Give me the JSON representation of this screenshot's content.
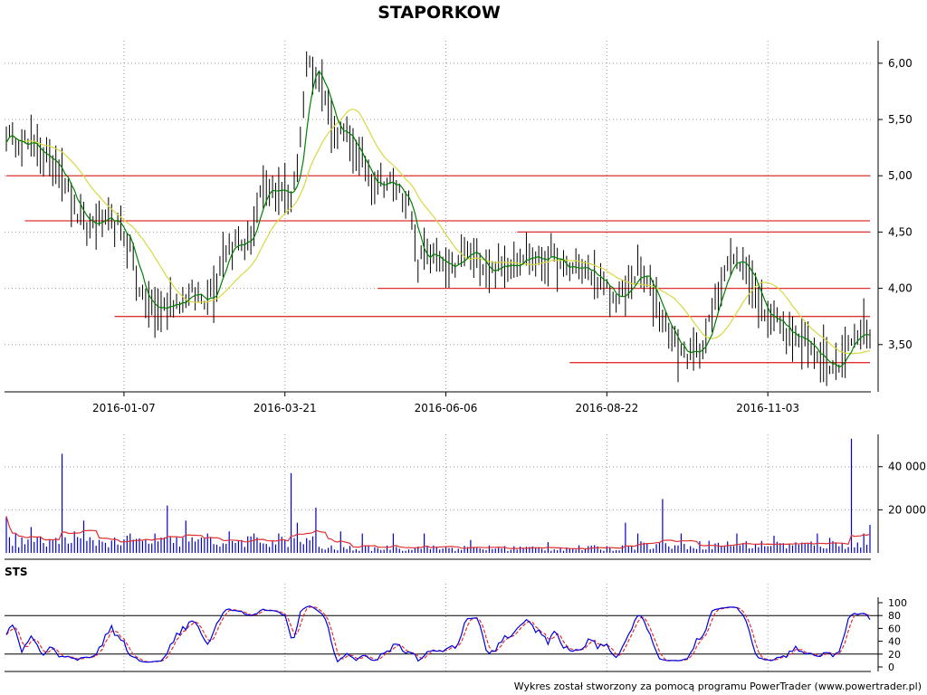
{
  "title": "STAPORKOW",
  "footer": "Wykres został stworzony za pomocą programu PowerTrader (www.powertrader.pl)",
  "colors": {
    "price_bars": "#000000",
    "ma_short": "#008000",
    "ma_long": "#d8d840",
    "support_resistance": "#e03030",
    "volume_bars": "#0000c8",
    "volume_ma": "#e03030",
    "sts_k": "#0000e0",
    "sts_d": "#e03030"
  },
  "chart_data": [
    {
      "type": "ohlc",
      "panel": "price",
      "x_ticks": [
        "2016-01-07",
        "2016-03-21",
        "2016-06-06",
        "2016-08-22",
        "2016-11-03"
      ],
      "x_tick_indices": [
        38,
        90,
        142,
        194,
        246
      ],
      "num_sessions": 280,
      "y_ticks": [
        "6,00",
        "5,50",
        "5,00",
        "4,50",
        "4,00",
        "3,50"
      ],
      "y_tick_values": [
        6.0,
        5.5,
        5.0,
        4.5,
        4.0,
        3.5
      ],
      "ylim": [
        3.08,
        6.2
      ],
      "grid": true,
      "series": [
        {
          "name": "",
          "kind": "moving-average-short"
        },
        {
          "name": "",
          "kind": "moving-average-long"
        }
      ],
      "close_anchors": [
        [
          0,
          5.35
        ],
        [
          6,
          5.3
        ],
        [
          12,
          5.18
        ],
        [
          18,
          5.05
        ],
        [
          22,
          4.7
        ],
        [
          26,
          4.55
        ],
        [
          30,
          4.6
        ],
        [
          36,
          4.55
        ],
        [
          40,
          4.35
        ],
        [
          44,
          3.9
        ],
        [
          48,
          3.8
        ],
        [
          52,
          3.85
        ],
        [
          56,
          3.9
        ],
        [
          60,
          3.95
        ],
        [
          64,
          3.9
        ],
        [
          68,
          4.05
        ],
        [
          70,
          4.35
        ],
        [
          74,
          4.4
        ],
        [
          78,
          4.4
        ],
        [
          82,
          4.8
        ],
        [
          88,
          4.9
        ],
        [
          92,
          4.8
        ],
        [
          95,
          5.3
        ],
        [
          97,
          6.0
        ],
        [
          100,
          5.95
        ],
        [
          103,
          5.7
        ],
        [
          106,
          5.4
        ],
        [
          110,
          5.35
        ],
        [
          114,
          5.15
        ],
        [
          118,
          4.95
        ],
        [
          122,
          4.95
        ],
        [
          126,
          4.9
        ],
        [
          130,
          4.75
        ],
        [
          133,
          4.2
        ],
        [
          136,
          4.35
        ],
        [
          140,
          4.2
        ],
        [
          144,
          4.15
        ],
        [
          148,
          4.3
        ],
        [
          152,
          4.3
        ],
        [
          156,
          4.15
        ],
        [
          160,
          4.2
        ],
        [
          164,
          4.25
        ],
        [
          168,
          4.3
        ],
        [
          172,
          4.25
        ],
        [
          176,
          4.3
        ],
        [
          180,
          4.15
        ],
        [
          184,
          4.2
        ],
        [
          188,
          4.15
        ],
        [
          192,
          4.05
        ],
        [
          196,
          3.9
        ],
        [
          200,
          3.95
        ],
        [
          204,
          4.15
        ],
        [
          208,
          4.0
        ],
        [
          212,
          3.75
        ],
        [
          216,
          3.5
        ],
        [
          220,
          3.4
        ],
        [
          224,
          3.45
        ],
        [
          228,
          3.75
        ],
        [
          232,
          4.2
        ],
        [
          236,
          4.25
        ],
        [
          240,
          4.15
        ],
        [
          244,
          3.8
        ],
        [
          248,
          3.75
        ],
        [
          252,
          3.6
        ],
        [
          256,
          3.55
        ],
        [
          260,
          3.45
        ],
        [
          264,
          3.4
        ],
        [
          268,
          3.3
        ],
        [
          272,
          3.5
        ],
        [
          276,
          3.6
        ],
        [
          279,
          3.6
        ]
      ],
      "reference_lines": [
        {
          "value": 5.0,
          "from": 0,
          "to": 279
        },
        {
          "value": 4.6,
          "from": 6,
          "to": 279
        },
        {
          "value": 4.5,
          "from": 165,
          "to": 279
        },
        {
          "value": 4.0,
          "from": 120,
          "to": 279
        },
        {
          "value": 3.75,
          "from": 35,
          "to": 279
        },
        {
          "value": 3.34,
          "from": 182,
          "to": 279
        }
      ]
    },
    {
      "type": "bar",
      "panel": "volume",
      "y_ticks": [
        "40 000",
        "20 000"
      ],
      "y_tick_values": [
        40000,
        20000
      ],
      "ylim": [
        0,
        55000
      ],
      "grid": true,
      "series": [
        {
          "name": "",
          "kind": "volume"
        },
        {
          "name": "",
          "kind": "volume-moving-average"
        }
      ],
      "spikes": [
        [
          0,
          17000
        ],
        [
          3,
          9000
        ],
        [
          8,
          12000
        ],
        [
          18,
          46000
        ],
        [
          22,
          10000
        ],
        [
          25,
          15000
        ],
        [
          40,
          9000
        ],
        [
          48,
          9000
        ],
        [
          52,
          22000
        ],
        [
          58,
          15000
        ],
        [
          65,
          9000
        ],
        [
          72,
          10000
        ],
        [
          80,
          9000
        ],
        [
          88,
          9000
        ],
        [
          92,
          37000
        ],
        [
          94,
          14000
        ],
        [
          100,
          21000
        ],
        [
          108,
          10000
        ],
        [
          115,
          9000
        ],
        [
          125,
          9000
        ],
        [
          135,
          9000
        ],
        [
          150,
          6000
        ],
        [
          175,
          5000
        ],
        [
          200,
          14000
        ],
        [
          204,
          9000
        ],
        [
          212,
          25000
        ],
        [
          218,
          9000
        ],
        [
          236,
          9000
        ],
        [
          248,
          8000
        ],
        [
          262,
          9000
        ],
        [
          266,
          7000
        ],
        [
          273,
          53000
        ],
        [
          277,
          9000
        ],
        [
          279,
          13000
        ]
      ]
    },
    {
      "type": "line",
      "panel": "oscillator",
      "label": "STS",
      "y_ticks": [
        "100",
        "80",
        "60",
        "40",
        "20",
        "0"
      ],
      "y_tick_values": [
        100,
        80,
        60,
        40,
        20,
        0
      ],
      "ylim": [
        0,
        100
      ],
      "reference_lines": [
        80,
        20
      ],
      "grid": true,
      "series": [
        {
          "name": "",
          "kind": "k"
        },
        {
          "name": "",
          "kind": "d"
        }
      ]
    }
  ]
}
